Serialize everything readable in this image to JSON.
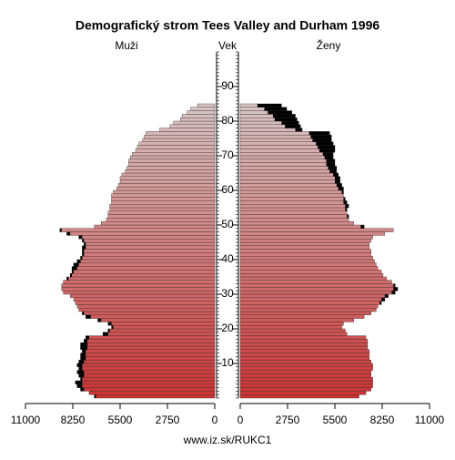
{
  "chart_data": {
    "type": "pyramid",
    "title": "Demografický strom Tees Valley and Durham 1996",
    "left_label": "Muži",
    "center_label": "Vek",
    "right_label": "Ženy",
    "source": "www.iz.sk/RUKC1",
    "ages": [
      0,
      1,
      2,
      3,
      4,
      5,
      6,
      7,
      8,
      9,
      10,
      11,
      12,
      13,
      14,
      15,
      16,
      17,
      18,
      19,
      20,
      21,
      22,
      23,
      24,
      25,
      26,
      27,
      28,
      29,
      30,
      31,
      32,
      33,
      34,
      35,
      36,
      37,
      38,
      39,
      40,
      41,
      42,
      43,
      44,
      45,
      46,
      47,
      48,
      49,
      50,
      51,
      52,
      53,
      54,
      55,
      56,
      57,
      58,
      59,
      60,
      61,
      62,
      63,
      64,
      65,
      66,
      67,
      68,
      69,
      70,
      71,
      72,
      73,
      74,
      75,
      76,
      77,
      78,
      79,
      80,
      81,
      82,
      83,
      84
    ],
    "series": [
      {
        "name": "Muži",
        "color": [
          "#cc3333",
          "#d8c4c4"
        ],
        "values": [
          7000,
          7300,
          7800,
          8000,
          8100,
          7800,
          7900,
          8000,
          7900,
          8000,
          7900,
          7800,
          7800,
          7700,
          7800,
          7800,
          7600,
          7500,
          6500,
          6200,
          6000,
          6200,
          6800,
          7500,
          7700,
          7900,
          8000,
          8100,
          8200,
          8400,
          8800,
          8900,
          8900,
          8800,
          8600,
          8400,
          8300,
          8300,
          8200,
          8000,
          7800,
          7700,
          7700,
          7700,
          7600,
          7700,
          7900,
          8600,
          9000,
          7000,
          6600,
          6300,
          6200,
          6200,
          6100,
          6100,
          6000,
          6000,
          6000,
          5900,
          5700,
          5600,
          5500,
          5500,
          5400,
          5200,
          5100,
          5000,
          5000,
          4900,
          4800,
          4600,
          4500,
          4400,
          4200,
          4100,
          4000,
          3200,
          2600,
          2400,
          2000,
          1900,
          1600,
          1400,
          1000
        ]
      },
      {
        "name": "Ženy",
        "color": [
          "#cc3333",
          "#d8c4c4"
        ],
        "values": [
          6900,
          7300,
          7600,
          7700,
          7700,
          7700,
          7600,
          7600,
          7700,
          7700,
          7600,
          7500,
          7500,
          7500,
          7400,
          7400,
          7400,
          7300,
          6200,
          6100,
          5900,
          6000,
          6600,
          7200,
          7600,
          7900,
          8000,
          8200,
          8400,
          8600,
          9000,
          9150,
          9000,
          8800,
          8500,
          8300,
          8200,
          8000,
          7900,
          7800,
          7700,
          7600,
          7600,
          7500,
          7500,
          7600,
          7700,
          8400,
          8900,
          7200,
          6600,
          6300,
          6300,
          6200,
          6200,
          6300,
          6200,
          6100,
          6000,
          6000,
          6000,
          5900,
          5800,
          5800,
          5700,
          5600,
          5600,
          5500,
          5500,
          5400,
          5400,
          5500,
          5500,
          5400,
          5300,
          5300,
          5200,
          3600,
          3500,
          3400,
          3300,
          3200,
          3000,
          2700,
          2400
        ]
      }
    ],
    "xlim": [
      0,
      11000
    ],
    "xticks": [
      0,
      2750,
      5500,
      8250,
      11000
    ],
    "ylim": [
      0,
      100
    ],
    "yticks": [
      10,
      20,
      30,
      40,
      50,
      60,
      70,
      80,
      90
    ]
  }
}
